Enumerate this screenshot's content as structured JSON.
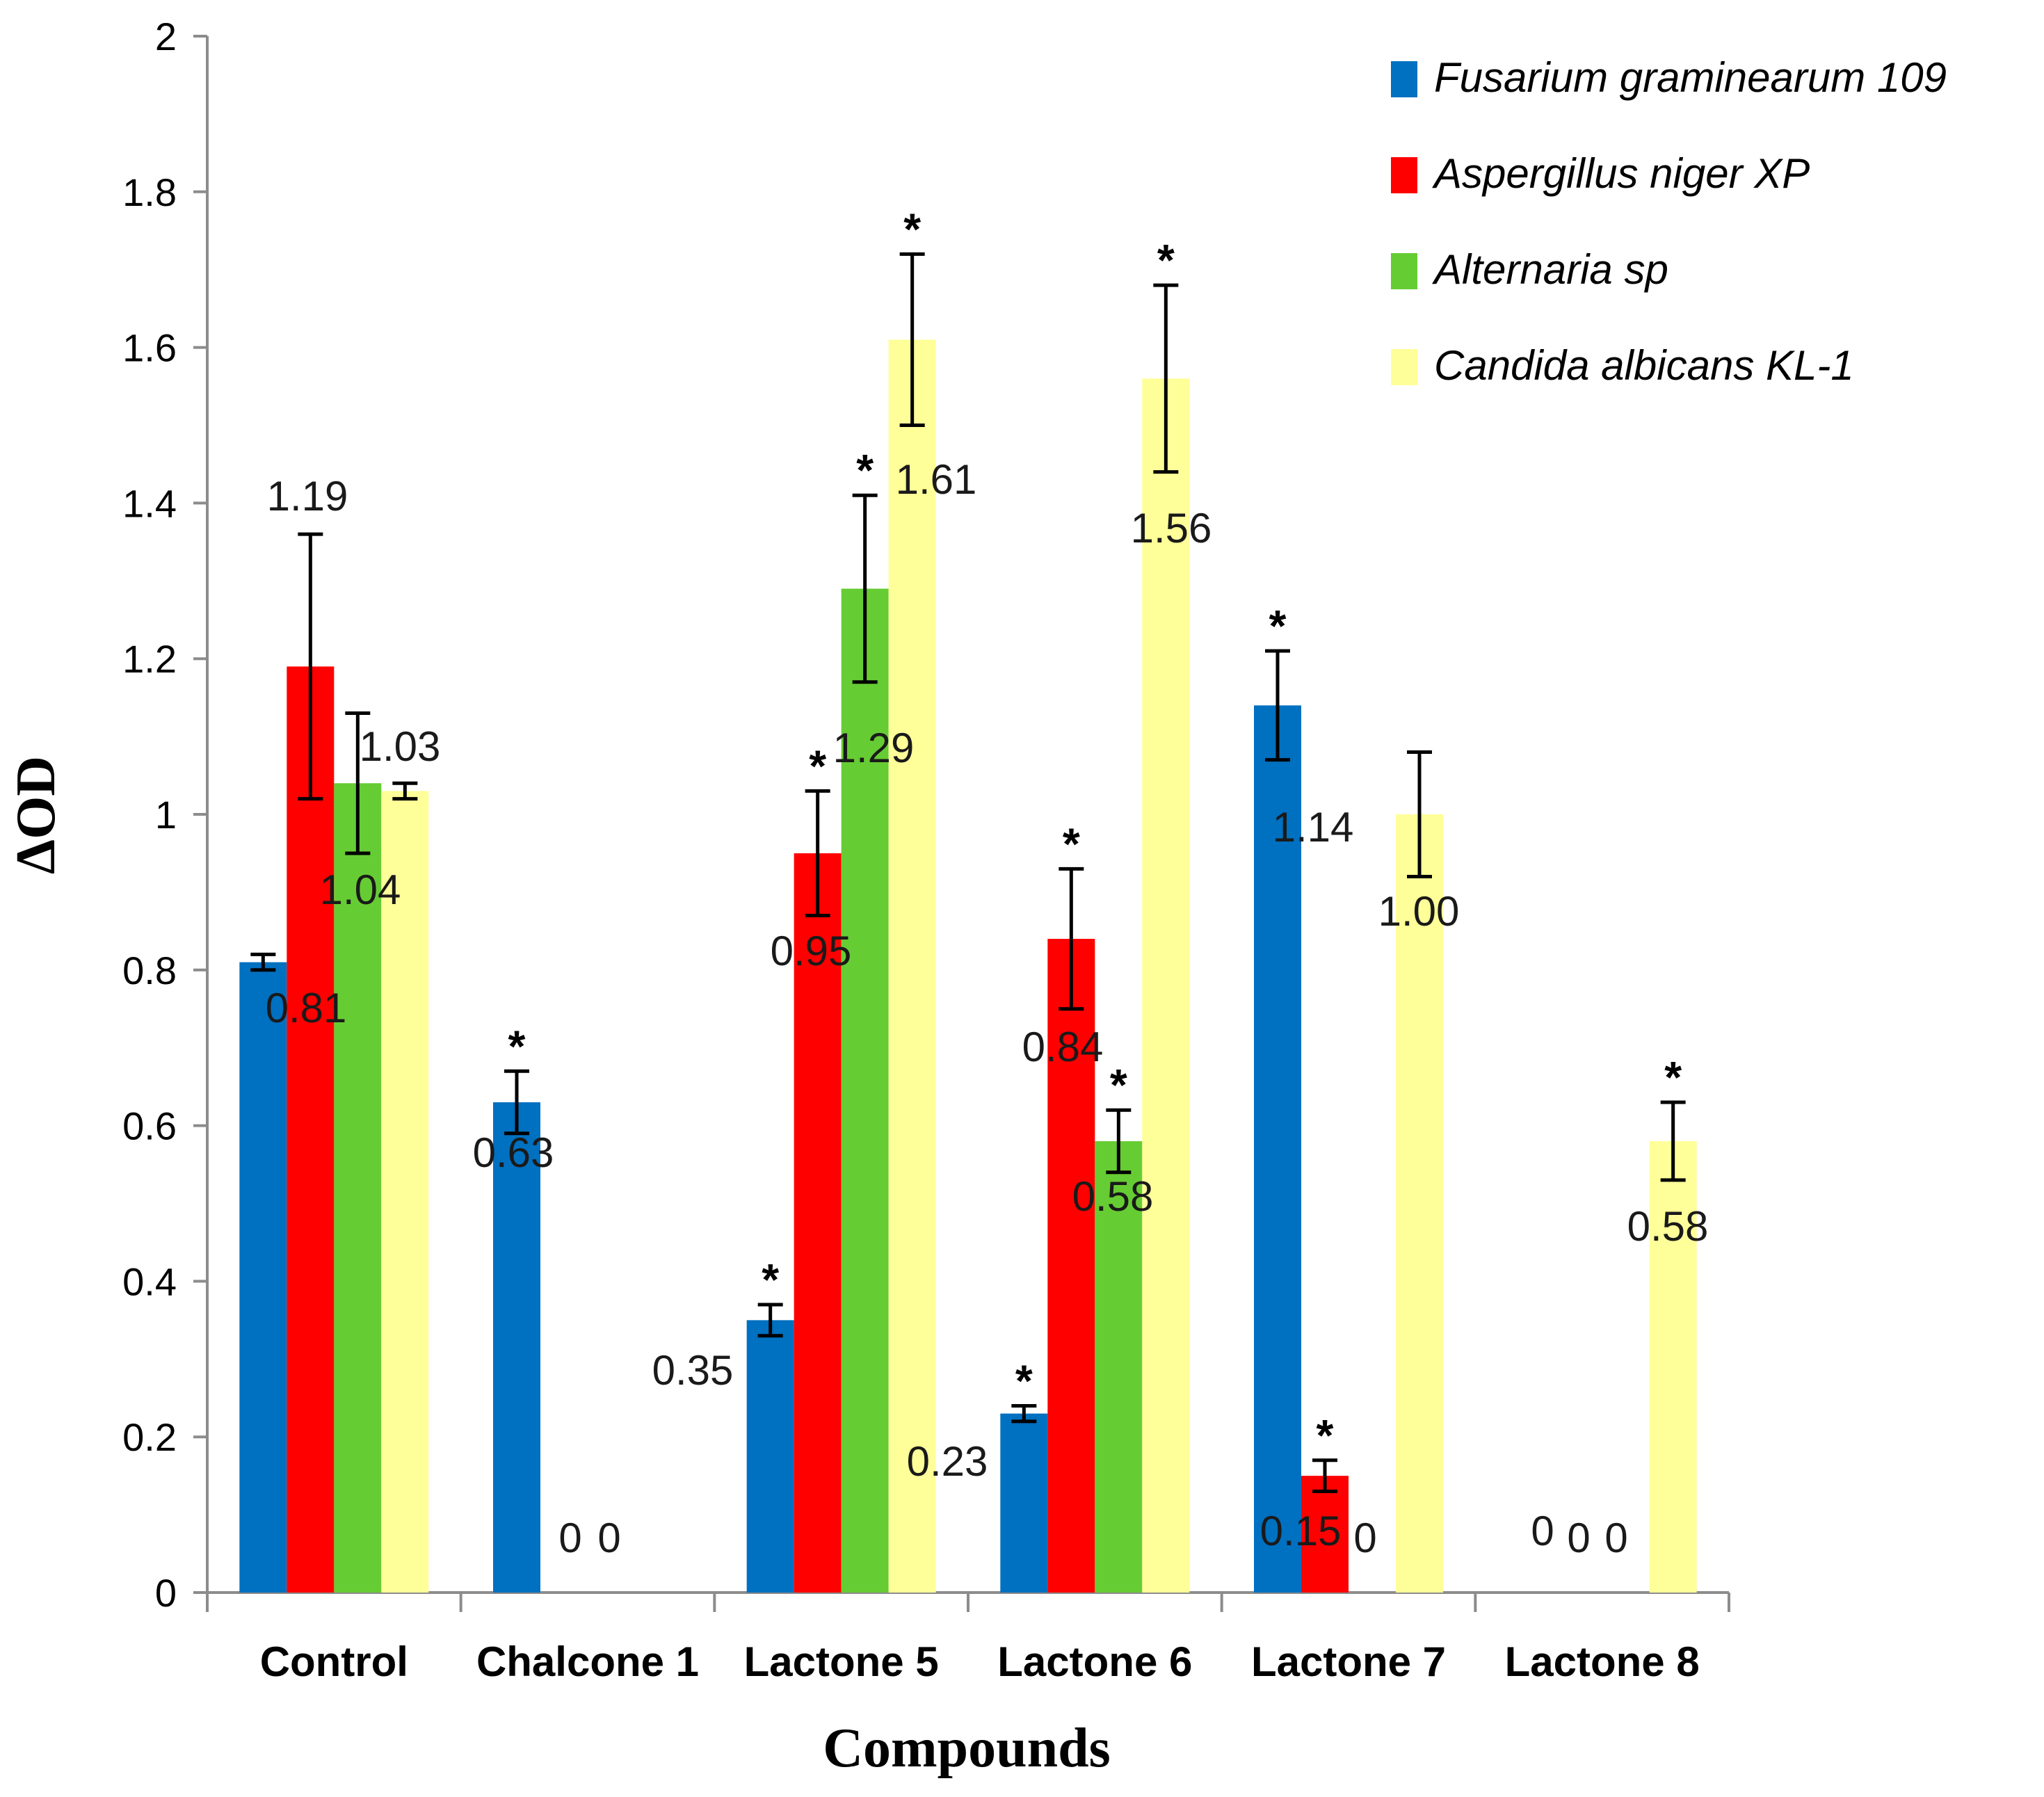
{
  "chart_data": {
    "type": "bar",
    "xlabel": "Compounds",
    "ylabel": "ΔOD",
    "ylim": [
      0,
      2
    ],
    "yticks": [
      0,
      0.2,
      0.4,
      0.6,
      0.8,
      1,
      1.2,
      1.4,
      1.6,
      1.8,
      2
    ],
    "ytick_labels": [
      "0",
      "0.2",
      "0.4",
      "0.6",
      "0.8",
      "1",
      "1.2",
      "1.4",
      "1.6",
      "1.8",
      "2"
    ],
    "grid": false,
    "legend_position": "top-right",
    "categories": [
      "Control",
      "Chalcone 1",
      "Lactone 5",
      "Lactone 6",
      "Lactone 7",
      "Lactone 8"
    ],
    "series": [
      {
        "name": "Fusarium graminearum 109",
        "color": "#0070C0",
        "values": [
          0.81,
          0.63,
          0.35,
          0.23,
          1.14,
          0
        ],
        "errors": [
          0.01,
          0.04,
          0.02,
          0.01,
          0.07,
          0
        ],
        "labels": [
          "0.81",
          "0.63",
          "0.35",
          "0.23",
          "1.14",
          "0"
        ],
        "significant": [
          false,
          true,
          true,
          true,
          true,
          false
        ]
      },
      {
        "name": "Aspergillus niger XP",
        "color": "#FF0000",
        "values": [
          1.19,
          0,
          0.95,
          0.84,
          0.15,
          0
        ],
        "errors": [
          0.17,
          0,
          0.08,
          0.09,
          0.02,
          0
        ],
        "labels": [
          "1.19",
          "0",
          "0.95",
          "0.84",
          "0.15",
          "0"
        ],
        "significant": [
          false,
          false,
          true,
          true,
          true,
          false
        ]
      },
      {
        "name": "Alternaria sp",
        "color": "#66CC33",
        "values": [
          1.04,
          0,
          1.29,
          0.58,
          0,
          0
        ],
        "errors": [
          0.09,
          0,
          0.12,
          0.04,
          0,
          0
        ],
        "labels": [
          "1.04",
          "0",
          "1.29",
          "0.58",
          "0",
          "0"
        ],
        "significant": [
          false,
          false,
          true,
          true,
          false,
          false
        ]
      },
      {
        "name": "Candida albicans KL-1",
        "color": "#FFFF99",
        "values": [
          1.03,
          0,
          1.61,
          1.56,
          1.0,
          0.58
        ],
        "errors": [
          0.01,
          0,
          0.11,
          0.12,
          0.08,
          0.05
        ],
        "labels": [
          "1.03",
          "",
          "1.61",
          "1.56",
          "1.00",
          "0.58"
        ],
        "significant": [
          false,
          false,
          true,
          true,
          false,
          true
        ]
      }
    ],
    "significance_marker": "*"
  }
}
